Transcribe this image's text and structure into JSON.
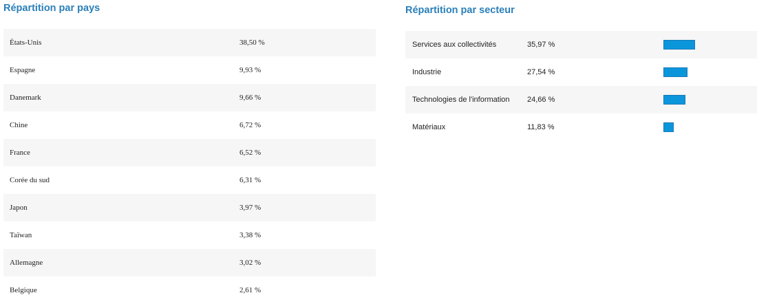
{
  "colors": {
    "title": "#2a7fb8",
    "bar_fill": "#0b96dc",
    "bar_border": "#1779b8",
    "row_alt": "#f6f6f6",
    "text": "#222222"
  },
  "country_panel": {
    "title": "Répartition par pays",
    "rows": [
      {
        "name": "États-Unis",
        "pct": "38,50 %"
      },
      {
        "name": "Espagne",
        "pct": "9,93 %"
      },
      {
        "name": "Danemark",
        "pct": "9,66 %"
      },
      {
        "name": "Chine",
        "pct": "6,72 %"
      },
      {
        "name": "France",
        "pct": "6,52 %"
      },
      {
        "name": "Corée du sud",
        "pct": "6,31 %"
      },
      {
        "name": "Japon",
        "pct": "3,97 %"
      },
      {
        "name": "Taïwan",
        "pct": "3,38 %"
      },
      {
        "name": "Allemagne",
        "pct": "3,02 %"
      },
      {
        "name": "Belgique",
        "pct": "2,61 %"
      }
    ]
  },
  "sector_panel": {
    "title": "Répartition par secteur",
    "rows": [
      {
        "name": "Services aux collectivités",
        "pct": "35,97 %",
        "share": 35.97
      },
      {
        "name": "Industrie",
        "pct": "27,54 %",
        "share": 27.54
      },
      {
        "name": "Technologies de l'information",
        "pct": "24,66 %",
        "share": 24.66
      },
      {
        "name": "Matériaux",
        "pct": "11,83 %",
        "share": 11.83
      }
    ]
  }
}
